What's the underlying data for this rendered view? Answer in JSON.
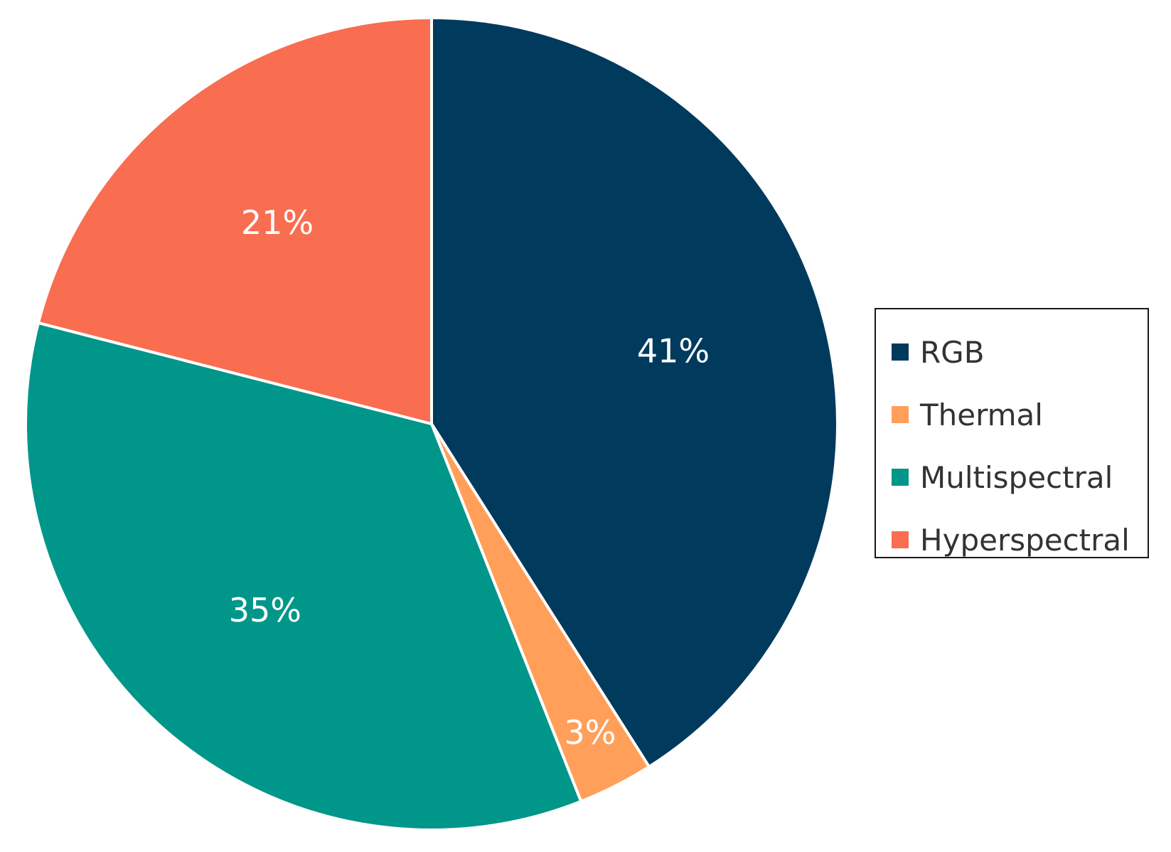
{
  "chart_data": {
    "type": "pie",
    "categories": [
      "RGB",
      "Thermal",
      "Multispectral",
      "Hyperspectral"
    ],
    "values": [
      41,
      3,
      35,
      21
    ],
    "data_labels": [
      "41%",
      "3%",
      "35%",
      "21%"
    ],
    "colors": [
      "#003A5D",
      "#FF9F5A",
      "#00968A",
      "#F96D50"
    ],
    "start_angle": "12 o'clock",
    "direction": "clockwise",
    "legend": {
      "position": "right",
      "entries": [
        "RGB",
        "Thermal",
        "Multispectral",
        "Hyperspectral"
      ]
    }
  }
}
